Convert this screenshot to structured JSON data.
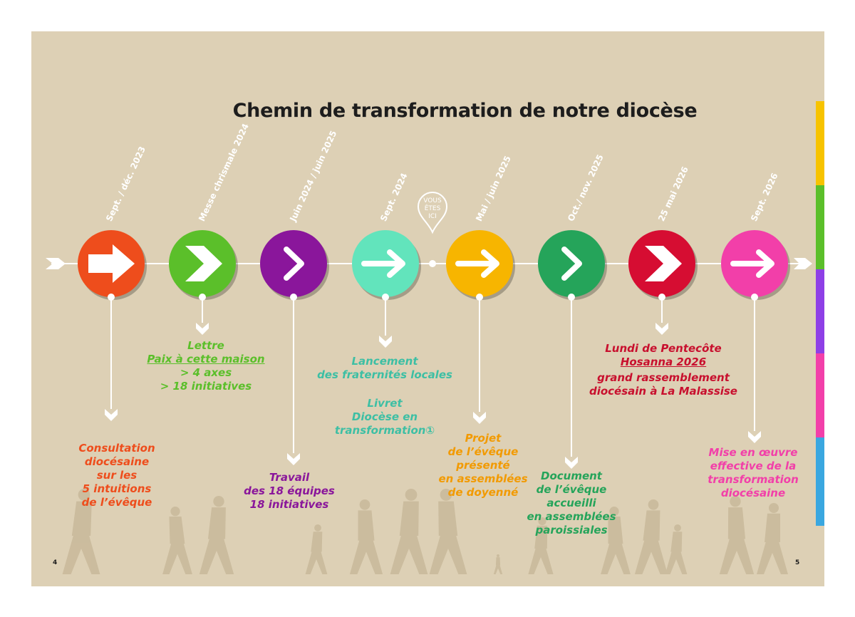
{
  "title": "Chemin de transformation de notre diocèse",
  "you_are_here": [
    "VOUS",
    "ÊTES",
    "ICI"
  ],
  "steps": [
    {
      "date": "Sept. / déc. 2023",
      "color": "#ee4d1c",
      "icon": "arrow-block-icon"
    },
    {
      "date": "Messe chrismale 2024",
      "color": "#5bbf2a",
      "icon": "chevron-double-icon"
    },
    {
      "date": "Juin 2024 / juin 2025",
      "color": "#8a169b",
      "icon": "chevron-icon"
    },
    {
      "date": "Sept. 2024",
      "color": "#62e4bc",
      "icon": "arrow-icon"
    },
    {
      "date": "Mai / juin 2025",
      "color": "#f7b500",
      "icon": "arrow-icon"
    },
    {
      "date": "Oct./ nov. 2025",
      "color": "#25a45a",
      "icon": "chevron-icon"
    },
    {
      "date": "25 mai 2026",
      "color": "#d60d32",
      "icon": "chevron-double-icon"
    },
    {
      "date": "Sept. 2026",
      "color": "#f23fa9",
      "icon": "arrow-icon"
    }
  ],
  "texts": {
    "consultation": [
      "Consultation",
      "diocésaine",
      "sur les",
      "5 intuitions",
      "de l’évêque"
    ],
    "lettre": {
      "line1": "Lettre",
      "title": "Paix à cette maison",
      "line3": "> 4 axes",
      "line4": "> 18 initiatives"
    },
    "travail": [
      "Travail",
      "des 18 équipes",
      "18 initiatives"
    ],
    "lancement": [
      "Lancement",
      "des fraternités locales"
    ],
    "livret": [
      "Livret",
      "Diocèse en",
      "transformation①"
    ],
    "projet": [
      "Projet",
      "de l’évêque",
      "présenté",
      "en assemblées",
      "de doyenné"
    ],
    "document": [
      "Document",
      "de l’évêque",
      "accueilli",
      "en assemblées",
      "paroissiales"
    ],
    "lundi": {
      "line1": "Lundi de Pentecôte",
      "title": "Hosanna 2026",
      "line3": "grand rassemblement",
      "line4": "diocésain à La Malassise"
    },
    "mise": [
      "Mise en œuvre",
      "effective de la",
      "transformation",
      "diocésaine"
    ]
  },
  "page_numbers": {
    "left": "4",
    "right": "5"
  },
  "side_tab_colors": [
    "#f7c300",
    "#5bbf2a",
    "#8e3fe6",
    "#f23fa9",
    "#3aa7e0"
  ]
}
